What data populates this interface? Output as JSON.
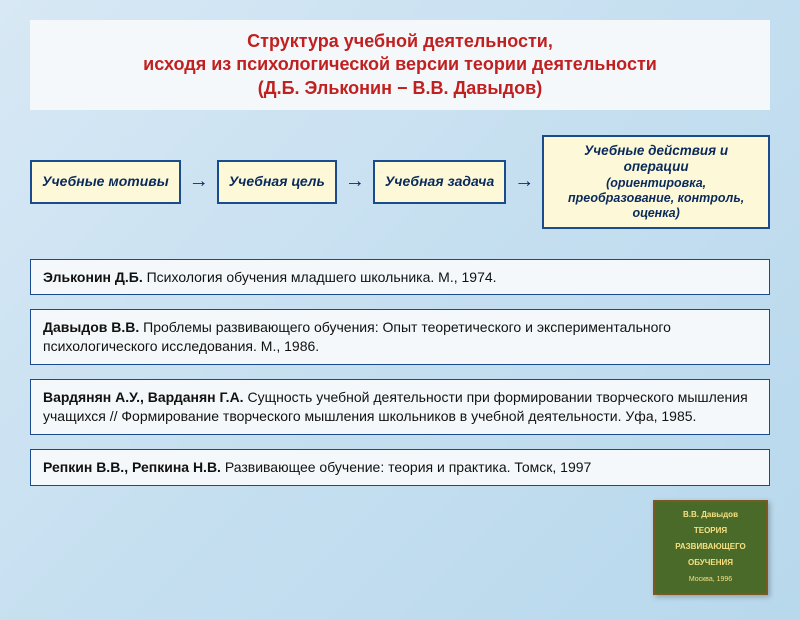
{
  "title": {
    "line1": "Структура учебной деятельности,",
    "line2": "исходя из психологической версии теории деятельности",
    "line3": "(Д.Б. Эльконин  − В.В. Давыдов)",
    "color": "#c02020",
    "fontsize": 18
  },
  "flow": {
    "box_bg": "#fdf9d8",
    "box_border": "#1a4b8c",
    "text_color": "#0a2a5c",
    "arrow_color": "#0a2a5c",
    "boxes": [
      {
        "label": "Учебные мотивы"
      },
      {
        "label": "Учебная цель"
      },
      {
        "label": "Учебная задача"
      },
      {
        "label": "Учебные действия и операции",
        "sub": "(ориентировка,  преобразование, контроль,  оценка)"
      }
    ]
  },
  "refs": {
    "box_bg": "#f5f8fa",
    "box_border": "#1a4b8c",
    "items": [
      {
        "bold": "Эльконин Д.Б.",
        "rest": " Психология обучения младшего школьника. М., 1974."
      },
      {
        "bold": "Давыдов В.В.",
        "rest": " Проблемы развивающего обучения: Опыт теоретического и экспериментального психологического исследования. М., 1986."
      },
      {
        "bold": "Вардянян А.У., Варданян Г.А.",
        "rest": " Сущность учебной деятельности при формировании творческого мышления учащихся // Формирование творческого мышления школьников в учебной деятельности. Уфа, 1985."
      },
      {
        "bold": "Репкин В.В., Репкина Н.В.",
        "rest": " Развивающее обучение: теория и практика. Томск, 1997"
      }
    ]
  },
  "book": {
    "bg": "#4a6a2a",
    "border": "#7a5a20",
    "text_color": "#f5e080",
    "author": "В.В. Давыдов",
    "title1": "ТЕОРИЯ",
    "title2": "РАЗВИВАЮЩЕГО",
    "title3": "ОБУЧЕНИЯ",
    "pub": "Москва, 1996"
  },
  "background": {
    "gradient_from": "#d8e8f5",
    "gradient_to": "#b8d8ec"
  }
}
